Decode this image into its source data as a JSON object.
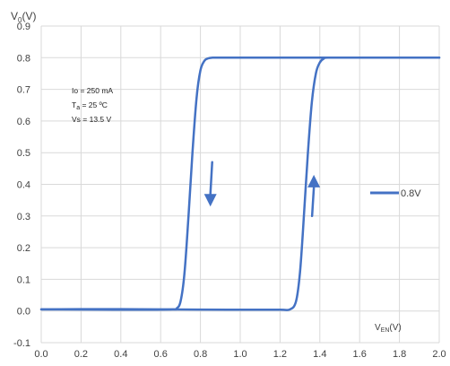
{
  "chart_data": {
    "type": "line",
    "ylabel_main": "V",
    "ylabel_sub": "0",
    "ylabel_unit": "(V)",
    "xlabel_main": "V",
    "xlabel_sub": "EN",
    "xlabel_unit": "(V)",
    "xlim": [
      0.0,
      2.0
    ],
    "ylim": [
      -0.1,
      0.9
    ],
    "grid": true,
    "legend_position": "right",
    "x_ticks": [
      "0.0",
      "0.2",
      "0.4",
      "0.6",
      "0.8",
      "1.0",
      "1.2",
      "1.4",
      "1.6",
      "1.8",
      "2.0"
    ],
    "y_ticks": [
      "-0.1",
      "0.0",
      "0.1",
      "0.2",
      "0.3",
      "0.4",
      "0.5",
      "0.6",
      "0.7",
      "0.8",
      "0.9"
    ],
    "conditions": {
      "line1": "Io = 250 mA",
      "line2_main": "T",
      "line2_sub": "a",
      "line2_rest": " = 25 ºC",
      "line3": "Vs = 13.5 V"
    },
    "series": [
      {
        "name": "0.8V",
        "color": "#4472C4",
        "rising": {
          "x": [
            0.0,
            0.3,
            0.6,
            1.0,
            1.2,
            1.25,
            1.28,
            1.3,
            1.32,
            1.34,
            1.36,
            1.38,
            1.4,
            1.42,
            1.44,
            1.6,
            2.0
          ],
          "y": [
            0.005,
            0.006,
            0.005,
            0.004,
            0.004,
            0.005,
            0.03,
            0.12,
            0.3,
            0.5,
            0.66,
            0.75,
            0.785,
            0.797,
            0.8,
            0.8,
            0.8
          ]
        },
        "falling": {
          "x": [
            2.0,
            1.5,
            1.0,
            0.88,
            0.86,
            0.84,
            0.82,
            0.8,
            0.78,
            0.76,
            0.74,
            0.72,
            0.7,
            0.68,
            0.66,
            0.5,
            0.0
          ],
          "y": [
            0.8,
            0.8,
            0.8,
            0.8,
            0.8,
            0.798,
            0.79,
            0.76,
            0.67,
            0.5,
            0.3,
            0.12,
            0.03,
            0.008,
            0.005,
            0.004,
            0.005
          ]
        }
      }
    ],
    "arrows": [
      {
        "direction": "down",
        "x": 0.85,
        "y_from": 0.47,
        "y_to": 0.33
      },
      {
        "direction": "up",
        "x": 1.37,
        "y_from": 0.3,
        "y_to": 0.43
      }
    ]
  }
}
